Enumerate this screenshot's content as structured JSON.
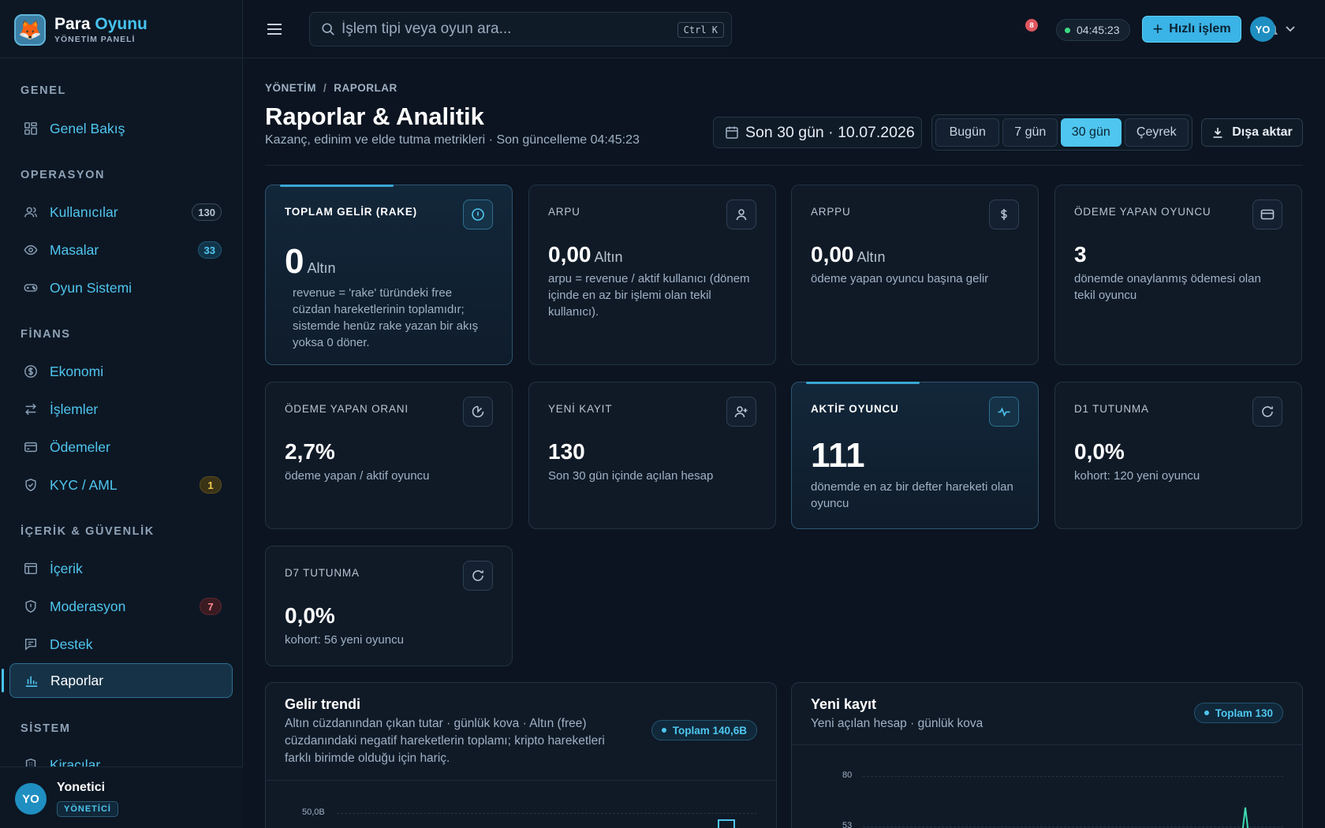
{
  "brand": {
    "name_part1": "Para",
    "name_part2": "Oyunu",
    "subtitle": "YÖNETİM PANELİ"
  },
  "sidebar": {
    "sections": [
      {
        "title": "GENEL",
        "items": [
          {
            "label": "Genel Bakış",
            "icon": "dashboard-icon"
          }
        ]
      },
      {
        "title": "OPERASYON",
        "items": [
          {
            "label": "Kullanıcılar",
            "icon": "users-icon",
            "badge": "130"
          },
          {
            "label": "Masalar",
            "icon": "eye-icon",
            "badge": "33"
          },
          {
            "label": "Oyun Sistemi",
            "icon": "gamepad-icon"
          }
        ]
      },
      {
        "title": "FİNANS",
        "items": [
          {
            "label": "Ekonomi",
            "icon": "coin-icon"
          },
          {
            "label": "İşlemler",
            "icon": "transfer-icon"
          },
          {
            "label": "Ödemeler",
            "icon": "card-icon"
          },
          {
            "label": "KYC / AML",
            "icon": "shield-check-icon",
            "badge": "1"
          }
        ]
      },
      {
        "title": "İÇERİK & GÜVENLİK",
        "items": [
          {
            "label": "İçerik",
            "icon": "layout-icon"
          },
          {
            "label": "Moderasyon",
            "icon": "shield-alert-icon",
            "badge": "7"
          },
          {
            "label": "Destek",
            "icon": "message-icon"
          },
          {
            "label": "Raporlar",
            "icon": "bar-chart-icon",
            "active": true
          }
        ]
      },
      {
        "title": "SİSTEM",
        "items": [
          {
            "label": "Kiracılar",
            "icon": "building-icon"
          }
        ]
      }
    ]
  },
  "user": {
    "initials": "YO",
    "name": "Yonetici",
    "role": "YÖNETİCİ"
  },
  "header": {
    "search_placeholder": "İşlem tipi veya oyun ara...",
    "shortcut": "Ctrl K",
    "notification_count": "8",
    "clock": "04:45:23",
    "quick_action": "Hızlı işlem",
    "avatar_initials": "YO"
  },
  "page": {
    "breadcrumb": [
      "YÖNETİM",
      "RAPORLAR"
    ],
    "title": "Raporlar & Analitik",
    "subtitle": "Kazanç, edinim ve elde tutma metrikleri · Son güncelleme 04:45:23",
    "date_range": "Son 30 gün · 10.07.2026",
    "ranges": [
      "Bugün",
      "7 gün",
      "30 gün",
      "Çeyrek"
    ],
    "active_range": "30 gün",
    "export": "Dışa aktar"
  },
  "cards": [
    {
      "label": "TOPLAM GELİR (RAKE)",
      "value": "0",
      "unit": "Altın",
      "desc": "revenue = 'rake' türündeki free cüzdan hareketlerinin toplamıdır; sistemde henüz rake yazan bir akış yoksa 0 döner.",
      "icon": "info-icon"
    },
    {
      "label": "ARPU",
      "value": "0,00",
      "unit": "Altın",
      "desc": "arpu = revenue / aktif kullanıcı (dönem içinde en az bir işlemi olan tekil kullanıcı).",
      "icon": "user-icon"
    },
    {
      "label": "ARPPU",
      "value": "0,00",
      "unit": "Altın",
      "desc": "ödeme yapan oyuncu başına gelir",
      "icon": "dollar-icon"
    },
    {
      "label": "ÖDEME YAPAN OYUNCU",
      "value": "3",
      "unit": "",
      "desc": "dönemde onaylanmış ödemesi olan tekil oyuncu",
      "icon": "credit-card-icon"
    },
    {
      "label": "ÖDEME YAPAN ORANI",
      "value": "2,7%",
      "unit": "",
      "desc": "ödeme yapan / aktif oyuncu",
      "icon": "pie-icon"
    },
    {
      "label": "YENİ KAYIT",
      "value": "130",
      "unit": "",
      "desc": "Son 30 gün içinde açılan hesap",
      "icon": "user-plus-icon"
    },
    {
      "label": "AKTİF OYUNCU",
      "value": "111",
      "unit": "",
      "desc": "dönemde en az bir defter hareketi olan oyuncu",
      "icon": "activity-icon"
    },
    {
      "label": "D1 TUTUNMA",
      "value": "0,0%",
      "unit": "",
      "desc": "kohort: 120 yeni oyuncu",
      "icon": "refresh-icon"
    },
    {
      "label": "D7 TUTUNMA",
      "value": "0,0%",
      "unit": "",
      "desc": "kohort: 56 yeni oyuncu",
      "icon": "refresh-icon"
    }
  ],
  "revenue_panel": {
    "title": "Gelir trendi",
    "subtitle": "Altın cüzdanından çıkan tutar · günlük kova · Altın (free) cüzdanındaki negatif hareketlerin toplamı; kripto hareketleri farklı birimde olduğu için hariç.",
    "total": "Toplam 140,6B",
    "y_tick": "50,0B"
  },
  "signup_panel": {
    "title": "Yeni kayıt",
    "subtitle": "Yeni açılan hesap · günlük kova",
    "total": "Toplam 130",
    "y_ticks": [
      "80",
      "53"
    ]
  },
  "colors": {
    "accent": "#47c3f0",
    "background": "#0b1420",
    "card": "#101a27"
  }
}
